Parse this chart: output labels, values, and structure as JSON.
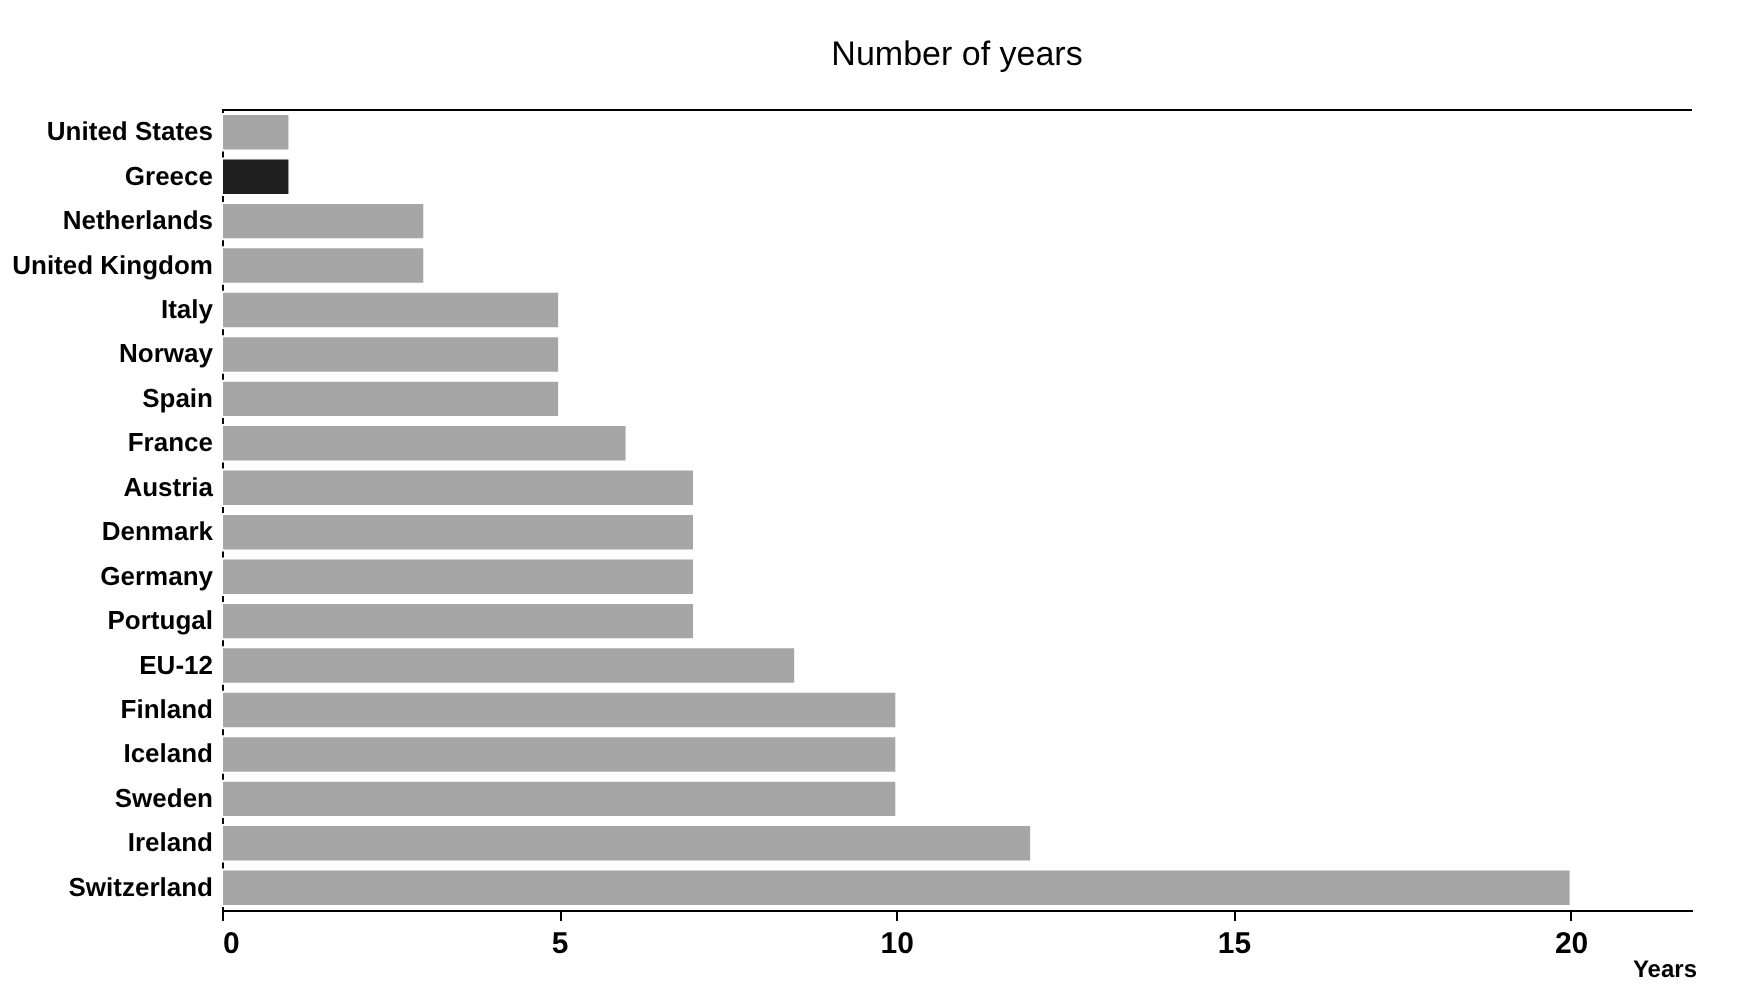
{
  "chart_data": {
    "type": "bar",
    "orientation": "horizontal",
    "title": "Number of years",
    "xlabel": "Years",
    "categories": [
      "United States",
      "Greece",
      "Netherlands",
      "United Kingdom",
      "Italy",
      "Norway",
      "Spain",
      "France",
      "Austria",
      "Denmark",
      "Germany",
      "Portugal",
      "EU-12",
      "Finland",
      "Iceland",
      "Sweden",
      "Ireland",
      "Switzerland"
    ],
    "values": [
      1,
      1,
      3,
      3,
      5,
      5,
      5,
      6,
      7,
      7,
      7,
      7,
      8.5,
      10,
      10,
      10,
      12,
      20
    ],
    "colors": [
      "#a6a6a6",
      "#1e1e1e",
      "#a6a6a6",
      "#a6a6a6",
      "#a6a6a6",
      "#a6a6a6",
      "#a6a6a6",
      "#a6a6a6",
      "#a6a6a6",
      "#a6a6a6",
      "#a6a6a6",
      "#a6a6a6",
      "#a6a6a6",
      "#a6a6a6",
      "#a6a6a6",
      "#a6a6a6",
      "#a6a6a6",
      "#a6a6a6"
    ],
    "xlim": [
      0,
      21.8
    ],
    "xticks": [
      0,
      5,
      10,
      15,
      20
    ],
    "grid": false,
    "legend": false
  }
}
